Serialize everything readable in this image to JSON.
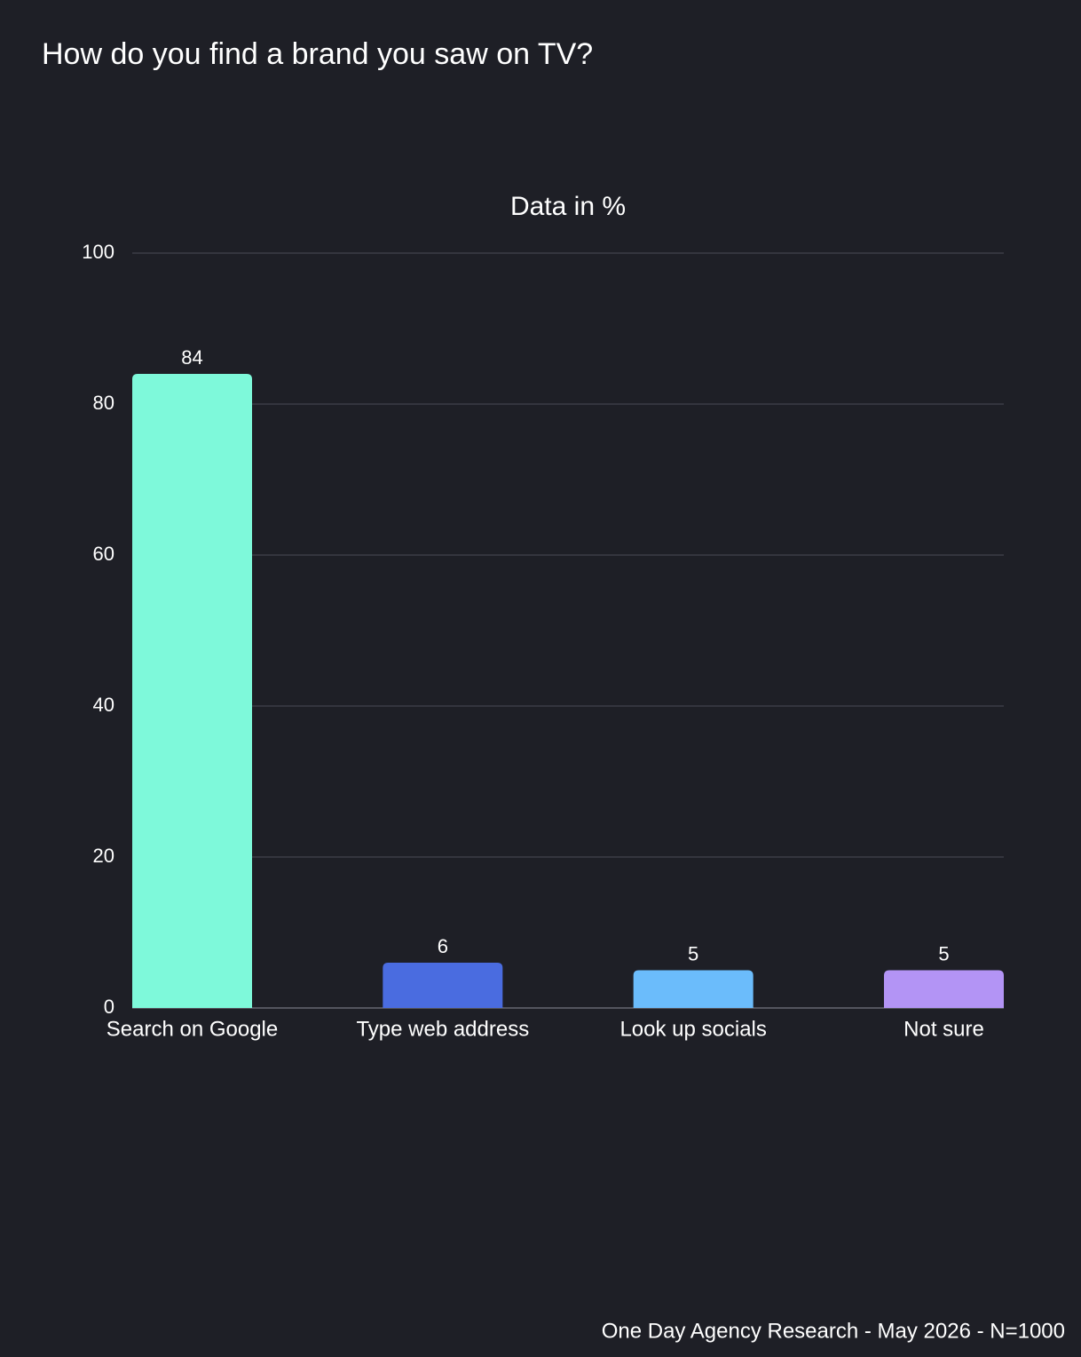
{
  "chart_data": {
    "type": "bar",
    "title": "How do you find a brand you saw on TV?",
    "subtitle": "Data in %",
    "categories": [
      "Search on Google",
      "Type web address",
      "Look up socials",
      "Not sure"
    ],
    "values": [
      84,
      6,
      5,
      5
    ],
    "colors": [
      "#7ef9da",
      "#4a6ce0",
      "#6bbcfb",
      "#b394f5"
    ],
    "ylim": [
      0,
      100
    ],
    "yticks": [
      0,
      20,
      40,
      60,
      80,
      100
    ],
    "grid": true,
    "source": "One Day Agency Research - May 2026 - N=1000"
  }
}
